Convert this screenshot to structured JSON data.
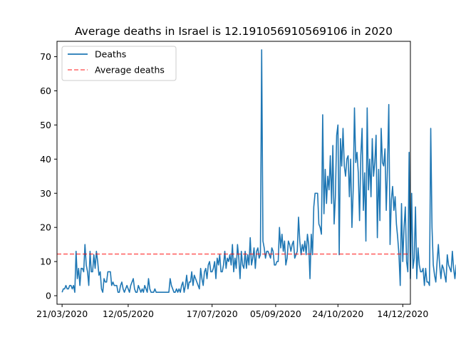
{
  "chart_data": {
    "type": "line",
    "title": "Average deaths in Israel is 12.191056910569106 in 2020",
    "xlabel": "",
    "ylabel": "",
    "x_start": "21/03/2020",
    "x_end": "16/12/2020",
    "xlim": [
      "17/03/2020",
      "20/12/2020"
    ],
    "ylim": [
      -2.5,
      74.5
    ],
    "x_ticks": [
      "21/03/2020",
      "12/05/2020",
      "17/07/2020",
      "05/09/2020",
      "24/10/2020",
      "14/12/2020"
    ],
    "y_ticks": [
      0,
      10,
      20,
      30,
      40,
      50,
      60,
      70
    ],
    "grid": false,
    "legend_position": "top-left",
    "average": 12.191056910569106,
    "series": [
      {
        "name": "Deaths",
        "color": "#1f77b4",
        "style": "solid",
        "values": [
          1,
          2,
          2,
          3,
          2,
          2,
          3,
          3,
          2,
          3,
          1,
          13,
          5,
          8,
          3,
          8,
          8,
          7,
          15,
          9,
          7,
          3,
          13,
          7,
          7,
          12,
          8,
          13,
          10,
          6,
          7,
          2,
          1,
          5,
          4,
          4,
          7,
          7,
          7,
          3,
          4,
          3,
          3,
          3,
          1,
          1,
          3,
          4,
          2,
          1,
          2,
          3,
          2,
          1,
          3,
          4,
          5,
          2,
          1,
          1,
          3,
          2,
          1,
          2,
          1,
          3,
          2,
          1,
          5,
          2,
          1,
          1,
          1,
          2,
          1,
          1,
          1,
          1,
          1,
          1,
          1,
          1,
          1,
          1,
          1,
          5,
          3,
          2,
          1,
          1,
          2,
          1,
          2,
          1,
          3,
          4,
          1,
          3,
          6,
          2,
          4,
          4,
          7,
          3,
          6,
          5,
          4,
          3,
          2,
          8,
          5,
          3,
          7,
          8,
          5,
          9,
          10,
          7,
          7,
          8,
          10,
          5,
          11,
          9,
          12,
          7,
          7,
          9,
          13,
          8,
          11,
          10,
          12,
          9,
          15,
          7,
          11,
          8,
          15,
          11,
          5,
          13,
          9,
          8,
          13,
          8,
          12,
          9,
          17,
          9,
          11,
          14,
          8,
          13,
          14,
          11,
          12,
          72,
          16,
          14,
          11,
          13,
          13,
          12,
          11,
          14,
          13,
          9,
          9,
          10,
          10,
          20,
          14,
          18,
          13,
          16,
          9,
          11,
          16,
          15,
          13,
          15,
          16,
          11,
          12,
          13,
          23,
          16,
          12,
          15,
          13,
          16,
          12,
          18,
          15,
          5,
          18,
          12,
          26,
          30,
          30,
          30,
          21,
          20,
          18,
          53,
          24,
          37,
          27,
          35,
          31,
          41,
          27,
          44,
          21,
          29,
          47,
          50,
          12,
          46,
          38,
          49,
          38,
          35,
          40,
          41,
          29,
          40,
          20,
          31,
          55,
          39,
          42,
          36,
          22,
          41,
          49,
          25,
          36,
          16,
          55,
          31,
          40,
          29,
          46,
          35,
          39,
          47,
          17,
          37,
          22,
          49,
          39,
          38,
          43,
          25,
          38,
          56,
          15,
          28,
          32,
          25,
          29,
          21,
          17,
          12,
          3,
          27,
          10,
          20,
          26,
          10,
          7,
          42,
          5,
          30,
          8,
          11,
          26,
          5,
          14,
          9,
          7,
          7,
          8,
          3,
          8,
          4,
          4,
          3,
          49,
          20,
          9,
          6,
          4,
          10,
          15,
          9,
          5,
          9,
          8,
          6,
          4,
          12,
          9,
          8,
          7,
          13,
          8,
          5,
          9,
          7,
          3,
          28,
          7,
          10,
          16
        ]
      },
      {
        "name": "Average deaths",
        "color": "#ff0000",
        "style": "dashed",
        "value": 12.191056910569106
      }
    ]
  }
}
